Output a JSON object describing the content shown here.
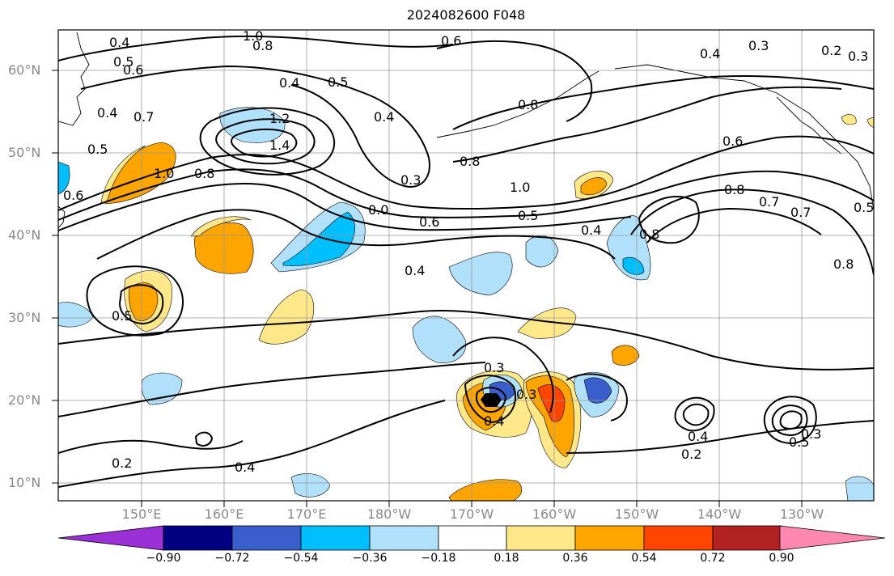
{
  "title": "2024082600 F048",
  "lat_labels": [
    "60°N",
    "50°N",
    "40°N",
    "30°N",
    "20°N",
    "10°N"
  ],
  "lon_labels": [
    "150°E",
    "160°E",
    "170°E",
    "180°W",
    "170°W",
    "160°W",
    "150°W",
    "140°W",
    "130°W"
  ],
  "colorbar": {
    "ticks": [
      "−0.90",
      "−0.72",
      "−0.54",
      "−0.36",
      "−0.18",
      "0.18",
      "0.36",
      "0.54",
      "0.72",
      "0.90"
    ],
    "colors": [
      "#9b30d6",
      "#000080",
      "#3a5fcd",
      "#00bfff",
      "#b0e0fa",
      "#ffffff",
      "#ffe88a",
      "#ffa500",
      "#ff4500",
      "#b22222",
      "#ff88b0"
    ]
  },
  "contour_labels": [
    "1.0",
    "0.8",
    "0.4",
    "0.5",
    "0.6",
    "0.4",
    "0.7",
    "0.4",
    "0.5",
    "0.6",
    "1.2",
    "1.4",
    "1.0",
    "0.8",
    "0.6",
    "0.4",
    "0.5",
    "0.3",
    "0.4",
    "0.8",
    "1.0",
    "0.6",
    "0.5",
    "0.4",
    "0.8",
    "0.3",
    "0.2",
    "0.3",
    "0.4",
    "0.6",
    "0.8",
    "0.7",
    "0.7",
    "0.8",
    "0.8",
    "0.5",
    "0.3",
    "0.3",
    "0.4",
    "0.4",
    "0.2",
    "0.2",
    "0.4",
    "0.5",
    "0.3",
    "0.0",
    "0.5"
  ]
}
